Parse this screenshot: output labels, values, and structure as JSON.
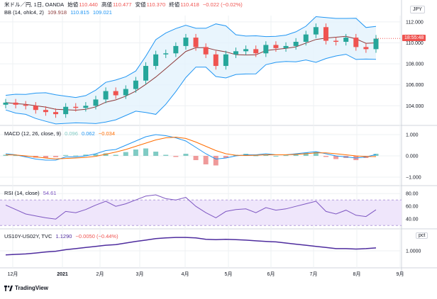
{
  "symbol_legend": {
    "symbol": "米ドル／円, 1日, OANDA",
    "open_label": "始値",
    "open": "110.440",
    "high_label": "高値",
    "high": "110.477",
    "low_label": "安値",
    "low": "110.370",
    "close_label": "終値",
    "close": "110.418",
    "change": "−0.022 (−0.02%)"
  },
  "bb_legend": {
    "label": "BB (14, ohlc4, 2)",
    "basis": "109.918",
    "upper": "110.815",
    "lower": "109.021"
  },
  "macd_legend": {
    "label": "MACD (12, 26, close, 9)",
    "hist": "0.096",
    "macd": "0.062",
    "signal": "−0.034"
  },
  "rsi_legend": {
    "label": "RSI (14, close)",
    "value": "54.61"
  },
  "us_legend": {
    "label": "US10Y-US02Y, TVC",
    "value": "1.1290",
    "change": "−0.0050 (−0.44%)"
  },
  "currency_badge": "JPY",
  "pct_badge": "pct",
  "price_tag": "18:55:48",
  "tv_brand": "TradingView",
  "colors": {
    "up": "#26a69a",
    "down": "#ef5350",
    "bb": "#2196f3",
    "bb_fill": "#e3f2fd",
    "basis": "#8d3a3a",
    "macd": "#2196f3",
    "signal": "#ff6d00",
    "rsi": "#7e57c2",
    "rsi_band": "#efe6fb",
    "us": "#4e2c9e",
    "grid": "#eef0f3"
  },
  "chart_data": [
    {
      "type": "candlestick",
      "title": "米ドル／円, 1日, OANDA",
      "x_ticks": [
        "12月",
        "2021",
        "2月",
        "3月",
        "4月",
        "5月",
        "6月",
        "7月",
        "8月",
        "9月"
      ],
      "y_ticks": [
        "112.000",
        "110.000",
        "108.000",
        "106.000",
        "104.000"
      ],
      "ylim": [
        102.6,
        112.6
      ],
      "dates": [
        "2020-11-26",
        "2020-12-03",
        "2020-12-10",
        "2020-12-17",
        "2020-12-24",
        "2020-12-31",
        "2021-01-07",
        "2021-01-14",
        "2021-01-21",
        "2021-01-28",
        "2021-02-04",
        "2021-02-11",
        "2021-02-18",
        "2021-02-25",
        "2021-03-04",
        "2021-03-11",
        "2021-03-18",
        "2021-03-25",
        "2021-04-01",
        "2021-04-08",
        "2021-04-15",
        "2021-04-22",
        "2021-04-29",
        "2021-05-06",
        "2021-05-13",
        "2021-05-20",
        "2021-05-27",
        "2021-06-03",
        "2021-06-10",
        "2021-06-17",
        "2021-06-24",
        "2021-07-01",
        "2021-07-08",
        "2021-07-15",
        "2021-07-22",
        "2021-07-29",
        "2021-08-05",
        "2021-08-12"
      ],
      "close": [
        104.3,
        104.1,
        104.0,
        103.6,
        103.4,
        103.2,
        103.9,
        103.8,
        104.0,
        104.6,
        105.4,
        105.0,
        105.6,
        106.4,
        107.8,
        108.9,
        109.0,
        109.7,
        110.5,
        109.6,
        108.9,
        107.8,
        108.9,
        109.2,
        109.4,
        109.0,
        109.8,
        109.5,
        109.7,
        110.1,
        110.8,
        111.5,
        110.2,
        110.1,
        110.5,
        109.6,
        109.4,
        110.4
      ],
      "ohlc": {
        "open": "110.440",
        "high": "110.477",
        "low": "110.370",
        "close": "110.418"
      },
      "bollinger": {
        "period": 14,
        "source": "ohlc4",
        "mult": 2,
        "basis": 109.918,
        "upper": 110.815,
        "lower": 109.021
      }
    },
    {
      "type": "line",
      "title": "MACD (12, 26, close, 9)",
      "y_ticks": [
        "1.000",
        "0.000",
        "−1.000"
      ],
      "ylim": [
        -1.2,
        1.2
      ],
      "hist": [
        0.05,
        0.03,
        -0.02,
        -0.08,
        -0.1,
        -0.06,
        0.04,
        0.02,
        0.06,
        0.08,
        0.12,
        0.05,
        0.18,
        0.3,
        0.35,
        0.2,
        0.05,
        -0.05,
        0.1,
        -0.2,
        -0.4,
        -0.45,
        -0.1,
        0.05,
        0.1,
        0.02,
        0.06,
        0.0,
        0.03,
        0.1,
        0.15,
        0.2,
        -0.05,
        -0.15,
        -0.1,
        -0.2,
        -0.1,
        0.1
      ],
      "macd": [
        0.1,
        0.05,
        -0.05,
        -0.15,
        -0.2,
        -0.2,
        -0.05,
        -0.05,
        0.0,
        0.1,
        0.25,
        0.3,
        0.5,
        0.7,
        0.9,
        1.0,
        0.95,
        0.85,
        0.7,
        0.4,
        0.1,
        -0.15,
        -0.1,
        0.0,
        0.05,
        0.05,
        0.1,
        0.05,
        0.05,
        0.1,
        0.15,
        0.2,
        0.1,
        0.0,
        -0.05,
        -0.1,
        -0.05,
        0.062
      ],
      "signal": [
        0.05,
        0.04,
        0.0,
        -0.05,
        -0.1,
        -0.14,
        -0.12,
        -0.1,
        -0.07,
        -0.02,
        0.08,
        0.18,
        0.3,
        0.45,
        0.6,
        0.75,
        0.85,
        0.88,
        0.82,
        0.65,
        0.45,
        0.25,
        0.1,
        0.03,
        0.02,
        0.03,
        0.05,
        0.05,
        0.05,
        0.07,
        0.1,
        0.14,
        0.14,
        0.1,
        0.05,
        0.0,
        -0.03,
        -0.034
      ]
    },
    {
      "type": "line",
      "title": "RSI (14, close)",
      "y_ticks": [
        "80.00",
        "60.00",
        "40.00"
      ],
      "ylim": [
        28,
        88
      ],
      "band": [
        30,
        70
      ],
      "values": [
        62,
        55,
        48,
        45,
        42,
        40,
        52,
        50,
        55,
        62,
        68,
        60,
        64,
        70,
        76,
        78,
        72,
        70,
        74,
        60,
        50,
        42,
        52,
        55,
        56,
        50,
        58,
        54,
        56,
        60,
        64,
        68,
        52,
        48,
        54,
        46,
        44,
        54.61
      ]
    },
    {
      "type": "line",
      "title": "US10Y-US02Y, TVC",
      "y_ticks": [
        "1.0000"
      ],
      "ylim": [
        0.3,
        1.7
      ],
      "values": [
        0.82,
        0.84,
        0.86,
        0.9,
        0.95,
        0.98,
        1.05,
        1.1,
        1.15,
        1.2,
        1.25,
        1.28,
        1.35,
        1.42,
        1.48,
        1.55,
        1.58,
        1.6,
        1.6,
        1.58,
        1.52,
        1.5,
        1.52,
        1.5,
        1.48,
        1.45,
        1.42,
        1.4,
        1.35,
        1.3,
        1.25,
        1.2,
        1.15,
        1.1,
        1.1,
        1.08,
        1.1,
        1.129
      ]
    }
  ]
}
